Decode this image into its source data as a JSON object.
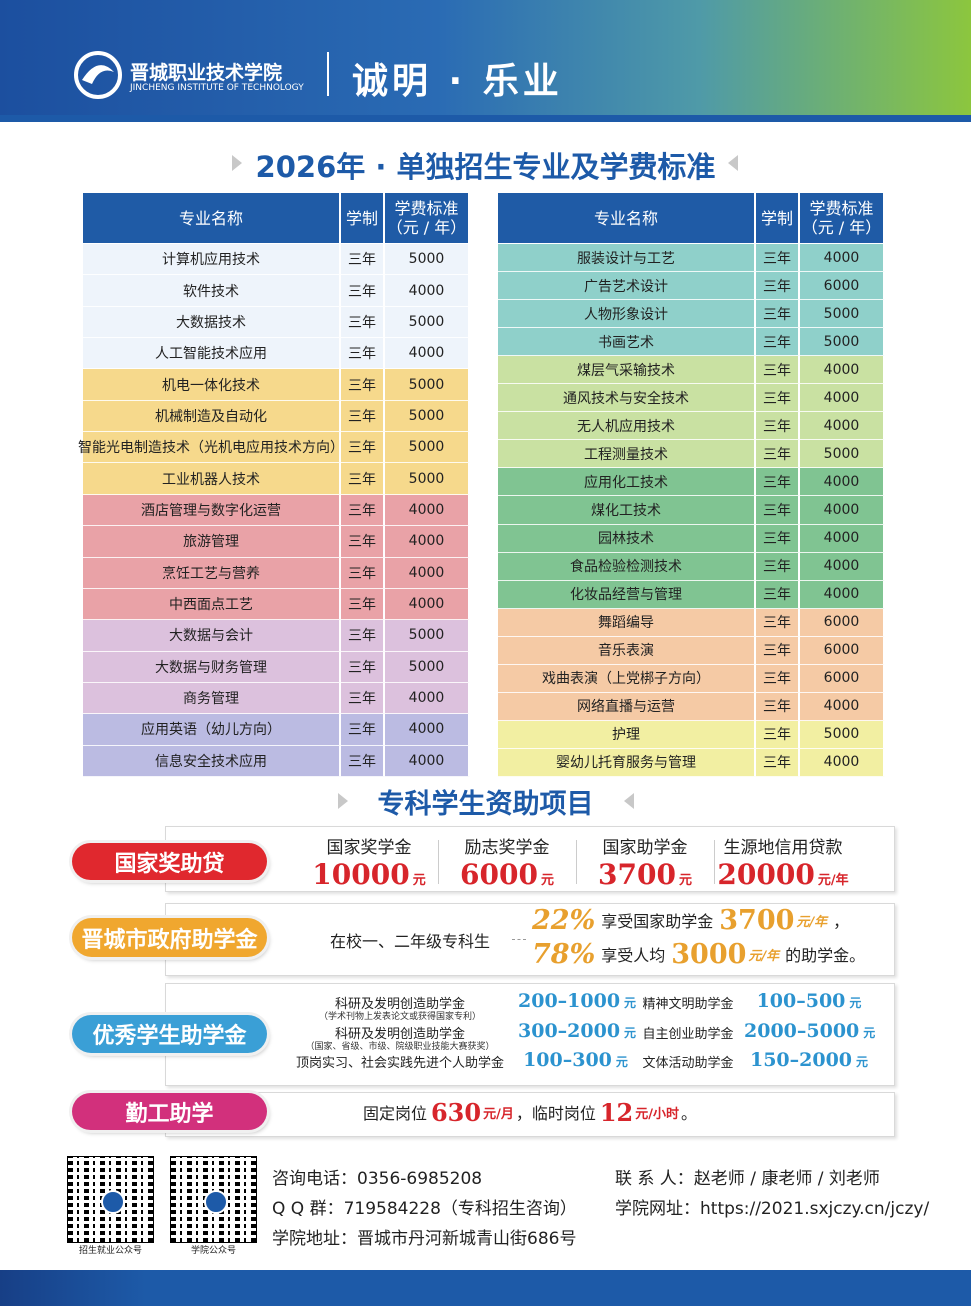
{
  "header": {
    "school_cn": "晋城职业技术学院",
    "school_en": "JINCHENG INSTITUTE OF TECHNOLOGY",
    "motto": "诚明 · 乐业"
  },
  "majors": {
    "title": "2026年 · 单独招生专业及学费标准",
    "headers": [
      "专业名称",
      "学制",
      "学费标准",
      "（元 / 年）"
    ],
    "tables": [
      {
        "groups": [
          {
            "color": "#eef4fb",
            "rows": [
              [
                "计算机应用技术",
                "三年",
                5000
              ],
              [
                "软件技术",
                "三年",
                4000
              ],
              [
                "大数据技术",
                "三年",
                5000
              ],
              [
                "人工智能技术应用",
                "三年",
                4000
              ]
            ]
          },
          {
            "color": "#f6d98c",
            "rows": [
              [
                "机电一体化技术",
                "三年",
                5000
              ],
              [
                "机械制造及自动化",
                "三年",
                5000
              ],
              [
                "智能光电制造技术（光机电应用技术方向）",
                "三年",
                5000
              ],
              [
                "工业机器人技术",
                "三年",
                5000
              ]
            ]
          },
          {
            "color": "#e9a2a7",
            "rows": [
              [
                "酒店管理与数字化运营",
                "三年",
                4000
              ],
              [
                "旅游管理",
                "三年",
                4000
              ],
              [
                "烹饪工艺与营养",
                "三年",
                4000
              ],
              [
                "中西面点工艺",
                "三年",
                4000
              ]
            ]
          },
          {
            "color": "#dcc1dd",
            "rows": [
              [
                "大数据与会计",
                "三年",
                5000
              ],
              [
                "大数据与财务管理",
                "三年",
                5000
              ],
              [
                "商务管理",
                "三年",
                4000
              ]
            ]
          },
          {
            "color": "#bbbbe2",
            "rows": [
              [
                "应用英语（幼儿方向）",
                "三年",
                4000
              ],
              [
                "信息安全技术应用",
                "三年",
                4000
              ]
            ]
          }
        ]
      },
      {
        "groups": [
          {
            "color": "#8fd0ca",
            "rows": [
              [
                "服装设计与工艺",
                "三年",
                4000
              ],
              [
                "广告艺术设计",
                "三年",
                6000
              ],
              [
                "人物形象设计",
                "三年",
                5000
              ],
              [
                "书画艺术",
                "三年",
                5000
              ]
            ]
          },
          {
            "color": "#c9e1a2",
            "rows": [
              [
                "煤层气采输技术",
                "三年",
                4000
              ],
              [
                "通风技术与安全技术",
                "三年",
                4000
              ],
              [
                "无人机应用技术",
                "三年",
                4000
              ],
              [
                "工程测量技术",
                "三年",
                5000
              ]
            ]
          },
          {
            "color": "#80c492",
            "rows": [
              [
                "应用化工技术",
                "三年",
                4000
              ],
              [
                "煤化工技术",
                "三年",
                4000
              ],
              [
                "园林技术",
                "三年",
                4000
              ],
              [
                "食品检验检测技术",
                "三年",
                4000
              ],
              [
                "化妆品经营与管理",
                "三年",
                4000
              ]
            ]
          },
          {
            "color": "#f5caa5",
            "rows": [
              [
                "舞蹈编导",
                "三年",
                6000
              ],
              [
                "音乐表演",
                "三年",
                6000
              ],
              [
                "戏曲表演（上党梆子方向）",
                "三年",
                6000
              ],
              [
                "网络直播与运营",
                "三年",
                4000
              ]
            ]
          },
          {
            "color": "#f2efa2",
            "rows": [
              [
                "护理",
                "三年",
                5000
              ],
              [
                "婴幼儿托育服务与管理",
                "三年",
                4000
              ]
            ]
          }
        ]
      }
    ]
  },
  "aid": {
    "title": "专科学生资助项目",
    "national": {
      "label": "国家奖助贷",
      "color": "#e0282e",
      "items": [
        {
          "name": "国家奖学金",
          "amount": 10000,
          "unit": "元"
        },
        {
          "name": "励志奖学金",
          "amount": 6000,
          "unit": "元"
        },
        {
          "name": "国家助学金",
          "amount": 3700,
          "unit": "元"
        },
        {
          "name": "生源地信用贷款",
          "amount": 20000,
          "unit": "元/年"
        }
      ]
    },
    "city": {
      "label": "晋城市政府助学金",
      "color": "#f0a72f",
      "target": "在校一、二年级专科生",
      "lines": [
        [
          "22%",
          "享受国家助学金",
          "3700",
          "元/年",
          "，"
        ],
        [
          "78%",
          "享受人均",
          "3000",
          "元/年",
          "的助学金。"
        ]
      ]
    },
    "excellent": {
      "label": "优秀学生助学金",
      "color": "#3a9fd6",
      "left": [
        {
          "name": "科研及发明创造助学金",
          "note": "（学术刊物上发表论文或获得国家专利）",
          "amount": "200–1000",
          "unit": "元"
        },
        {
          "name": "科研及发明创造助学金",
          "note": "（国家、省级、市级、院级职业技能大赛获奖）",
          "amount": "300–2000",
          "unit": "元"
        },
        {
          "name": "顶岗实习、社会实践先进个人助学金",
          "amount": "100–300",
          "unit": "元"
        }
      ],
      "right": [
        {
          "name": "精神文明助学金",
          "amount": "100–500",
          "unit": "元"
        },
        {
          "name": "自主创业助学金",
          "amount": "2000–5000",
          "unit": "元"
        },
        {
          "name": "文体活动助学金",
          "amount": "150–2000",
          "unit": "元"
        }
      ]
    },
    "work": {
      "label": "勤工助学",
      "color": "#d2307c",
      "parts": [
        "固定岗位",
        "630",
        "元/月",
        "，临时岗位",
        "12",
        "元/小时",
        "。"
      ]
    }
  },
  "footer": {
    "qr_labels": [
      "招生就业公众号",
      "学院公众号"
    ],
    "contacts": [
      {
        "label": "咨询电话：",
        "value": "0356-6985208"
      },
      {
        "label": "Q Q 群：",
        "value": "719584228（专科招生咨询）"
      },
      {
        "label": "学院地址：",
        "value": "晋城市丹河新城青山街686号"
      }
    ],
    "contacts_right": [
      {
        "label": "联 系 人：",
        "value": "赵老师 / 康老师 / 刘老师"
      },
      {
        "label": "学院网址：",
        "value": "https://2021.sxjczy.cn/jczy/"
      }
    ]
  }
}
